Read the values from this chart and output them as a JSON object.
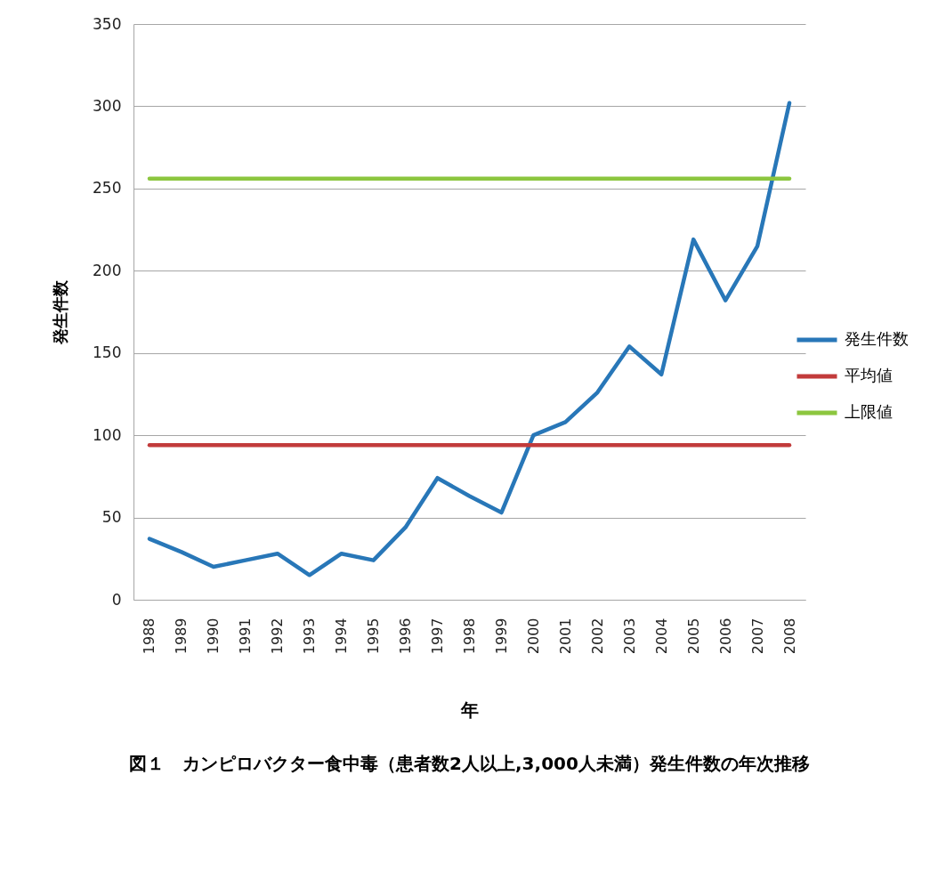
{
  "chart_data": {
    "type": "line",
    "title": "図１　カンピロバクター食中毒（患者数2人以上,3,000人未満）発生件数の年次推移",
    "xlabel": "年",
    "ylabel": "発生件数",
    "categories": [
      "1988",
      "1989",
      "1990",
      "1991",
      "1992",
      "1993",
      "1994",
      "1995",
      "1996",
      "1997",
      "1998",
      "1999",
      "2000",
      "2001",
      "2002",
      "2003",
      "2004",
      "2005",
      "2006",
      "2007",
      "2008"
    ],
    "series": [
      {
        "name": "発生件数",
        "color": "#2877b8",
        "values": [
          37,
          29,
          20,
          24,
          28,
          15,
          28,
          24,
          44,
          74,
          63,
          53,
          100,
          108,
          126,
          154,
          137,
          219,
          182,
          215,
          302
        ]
      },
      {
        "name": "平均値",
        "color": "#c23b3b",
        "values": [
          94,
          94,
          94,
          94,
          94,
          94,
          94,
          94,
          94,
          94,
          94,
          94,
          94,
          94,
          94,
          94,
          94,
          94,
          94,
          94,
          94
        ]
      },
      {
        "name": "上限値",
        "color": "#8cc63f",
        "values": [
          256,
          256,
          256,
          256,
          256,
          256,
          256,
          256,
          256,
          256,
          256,
          256,
          256,
          256,
          256,
          256,
          256,
          256,
          256,
          256,
          256
        ]
      }
    ],
    "ylim": [
      0,
      350
    ],
    "yticks": [
      0,
      50,
      100,
      150,
      200,
      250,
      300,
      350
    ],
    "grid": "y",
    "legend": "right"
  }
}
